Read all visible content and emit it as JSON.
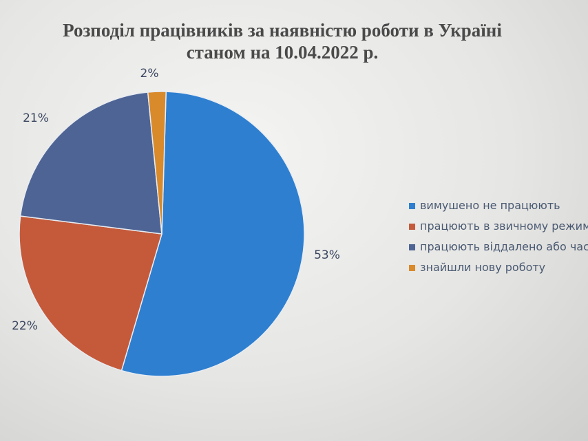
{
  "chart_data": {
    "type": "pie",
    "title": "Розподіл працівників за наявністю роботи в Україні станом на 10.04.2022 р.",
    "title_lines": [
      "Розподіл працівників за наявністю роботи в Україні",
      "станом на 10.04.2022 р."
    ],
    "slices": [
      {
        "label": "вимушено не працюють",
        "value": 53,
        "value_label": "53%",
        "color": "#2e7fd0"
      },
      {
        "label": "працюють в звичному режим",
        "value": 22,
        "value_label": "22%",
        "color": "#c55a3a"
      },
      {
        "label": "працюють віддалено або част",
        "value": 21,
        "value_label": "21%",
        "color": "#4e6494"
      },
      {
        "label": "знайшли нову роботу",
        "value": 2,
        "value_label": "2%",
        "color": "#d98a2a"
      }
    ],
    "legend_position": "right"
  }
}
